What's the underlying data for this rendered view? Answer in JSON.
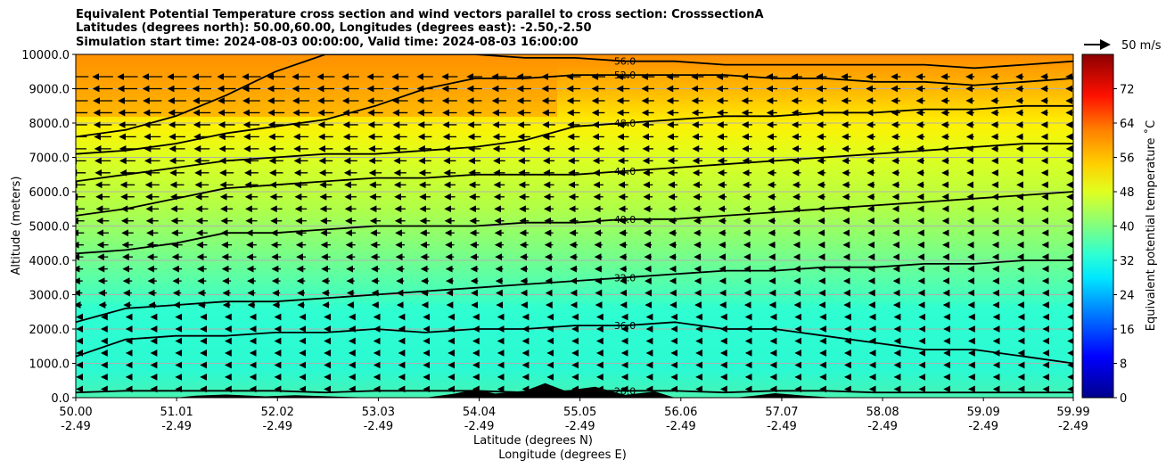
{
  "chart_data": {
    "type": "heatmap",
    "title_lines": [
      "Equivalent Potential Temperature cross section and wind vectors parallel to cross section: CrosssectionA",
      "Latitudes (degrees north): 50.00,60.00, Longitudes (degrees east): -2.50,-2.50",
      "Simulation start time: 2024-08-03 00:00:00, Valid time: 2024-08-03 16:00:00"
    ],
    "ylabel": "Altitude (meters)",
    "xlabel_lines": [
      "Latitude (degrees N)",
      "Longitude (degrees E)"
    ],
    "ylim": [
      0,
      10000
    ],
    "y_ticks": [
      "0.0",
      "1000.0",
      "2000.0",
      "3000.0",
      "4000.0",
      "5000.0",
      "6000.0",
      "7000.0",
      "8000.0",
      "9000.0",
      "10000.0"
    ],
    "x_ticks": [
      {
        "lat": "50.00",
        "lon": "-2.49"
      },
      {
        "lat": "51.01",
        "lon": "-2.49"
      },
      {
        "lat": "52.02",
        "lon": "-2.49"
      },
      {
        "lat": "53.03",
        "lon": "-2.49"
      },
      {
        "lat": "54.04",
        "lon": "-2.49"
      },
      {
        "lat": "55.05",
        "lon": "-2.49"
      },
      {
        "lat": "56.06",
        "lon": "-2.49"
      },
      {
        "lat": "57.07",
        "lon": "-2.49"
      },
      {
        "lat": "58.08",
        "lon": "-2.49"
      },
      {
        "lat": "59.09",
        "lon": "-2.49"
      },
      {
        "lat": "59.99",
        "lon": "-2.49"
      }
    ],
    "grid": true,
    "colorbar": {
      "label": "Equivalent potential temperature ˚C",
      "range": [
        0,
        80
      ],
      "ticks": [
        "0",
        "8",
        "16",
        "24",
        "32",
        "40",
        "48",
        "56",
        "64",
        "72"
      ]
    },
    "quiver_key": "50 m/s",
    "contours": [
      {
        "label": "32.0",
        "x": [
          50.0,
          50.5,
          51.0,
          51.5,
          52.0,
          52.5,
          53.0,
          53.5,
          54.0,
          54.5,
          55.0,
          55.5,
          56.0,
          56.5,
          57.0,
          57.5,
          58.0,
          58.5,
          59.0,
          59.5,
          59.99
        ],
        "y": [
          2200,
          2600,
          2700,
          2800,
          2800,
          2900,
          3000,
          3100,
          3200,
          3300,
          3400,
          3500,
          3600,
          3700,
          3700,
          3800,
          3800,
          3900,
          3900,
          4000,
          4000
        ]
      },
      {
        "label": "36.0",
        "x": [
          50.0,
          50.5,
          51.0,
          51.5,
          52.0,
          52.5,
          53.0,
          53.5,
          54.0,
          54.5,
          55.0,
          55.5,
          56.0,
          56.5,
          57.0,
          57.5,
          58.0,
          58.5,
          59.0,
          59.5,
          59.99
        ],
        "y": [
          1200,
          1700,
          1800,
          1800,
          1900,
          1900,
          2000,
          1900,
          2000,
          2000,
          2100,
          2100,
          2200,
          2000,
          2000,
          1800,
          1600,
          1400,
          1400,
          1200,
          1000
        ]
      },
      {
        "label": "40.0",
        "x": [
          50.0,
          50.5,
          51.0,
          51.5,
          52.0,
          52.5,
          53.0,
          53.5,
          54.0,
          54.5,
          55.0,
          55.5,
          56.0,
          56.5,
          57.0,
          57.5,
          58.0,
          58.5,
          59.0,
          59.5,
          59.99
        ],
        "y": [
          4200,
          4300,
          4500,
          4800,
          4800,
          4900,
          5000,
          5000,
          5000,
          5100,
          5100,
          5200,
          5200,
          5300,
          5400,
          5500,
          5600,
          5700,
          5800,
          5900,
          6000
        ]
      },
      {
        "label": "44.0",
        "x": [
          50.0,
          50.5,
          51.0,
          51.5,
          52.0,
          52.5,
          53.0,
          53.5,
          54.0,
          54.5,
          55.0,
          55.5,
          56.0,
          56.5,
          57.0,
          57.5,
          58.0,
          58.5,
          59.0,
          59.5,
          59.99
        ],
        "y": [
          5300,
          5500,
          5800,
          6100,
          6200,
          6300,
          6400,
          6400,
          6500,
          6500,
          6500,
          6600,
          6700,
          6800,
          6900,
          7000,
          7100,
          7200,
          7300,
          7400,
          7400
        ]
      },
      {
        "label": "48.0",
        "x": [
          50.0,
          50.5,
          51.0,
          51.5,
          52.0,
          52.5,
          53.0,
          53.5,
          54.0,
          54.5,
          55.0,
          55.5,
          56.0,
          56.5,
          57.0,
          57.5,
          58.0,
          58.5,
          59.0,
          59.5,
          59.99
        ],
        "y": [
          6300,
          6500,
          6700,
          6900,
          7000,
          7100,
          7100,
          7200,
          7300,
          7500,
          7900,
          8000,
          8100,
          8200,
          8200,
          8300,
          8300,
          8400,
          8400,
          8500,
          8500
        ]
      },
      {
        "label": "52.0",
        "x": [
          50.0,
          50.5,
          51.0,
          51.5,
          52.0,
          52.5,
          53.0,
          53.5,
          54.0,
          54.5,
          55.0,
          55.5,
          56.0,
          56.5,
          57.0,
          57.5,
          58.0,
          58.5,
          59.0,
          59.5,
          59.99
        ],
        "y": [
          7100,
          7200,
          7400,
          7700,
          7900,
          8100,
          8500,
          9000,
          9300,
          9300,
          9400,
          9400,
          9400,
          9400,
          9300,
          9300,
          9200,
          9200,
          9100,
          9200,
          9300
        ]
      },
      {
        "label": "56.0",
        "x": [
          50.0,
          50.5,
          51.0,
          51.5,
          52.0,
          52.5,
          53.0,
          53.5,
          54.0,
          54.5,
          55.0,
          55.5,
          56.0,
          56.5,
          57.0,
          57.5,
          58.0,
          58.5,
          59.0,
          59.5,
          59.99
        ],
        "y": [
          7600,
          7800,
          8200,
          8800,
          9500,
          10000,
          10000,
          10000,
          10000,
          9900,
          9900,
          9800,
          9800,
          9700,
          9700,
          9700,
          9700,
          9700,
          9600,
          9700,
          9800
        ]
      },
      {
        "label": "28.0",
        "x": [
          50.0,
          50.5,
          51.0,
          51.5,
          52.0,
          52.5,
          53.0,
          53.5,
          54.0,
          54.5,
          55.0,
          55.5,
          56.0,
          56.5,
          57.0,
          57.5,
          58.0,
          58.5,
          59.0,
          59.5,
          59.99
        ],
        "y": [
          150,
          200,
          200,
          200,
          200,
          150,
          200,
          200,
          200,
          150,
          200,
          200,
          200,
          150,
          200,
          200,
          150,
          150,
          150,
          150,
          150
        ]
      }
    ]
  }
}
